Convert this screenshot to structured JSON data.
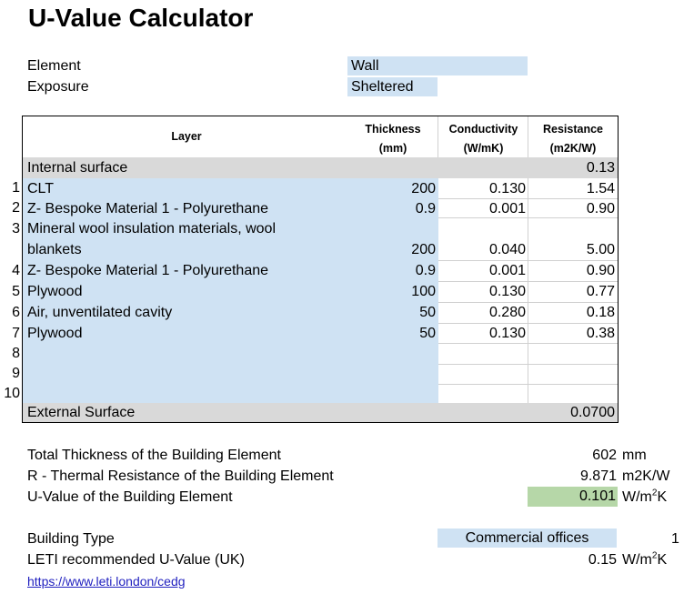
{
  "title": "U-Value Calculator",
  "element": {
    "label": "Element",
    "value": "Wall"
  },
  "exposure": {
    "label": "Exposure",
    "value": "Sheltered"
  },
  "table": {
    "headers": {
      "layer": "Layer",
      "thickness": "Thickness",
      "thickness_unit": "(mm)",
      "conductivity": "Conductivity",
      "conductivity_unit": "(W/mK)",
      "resistance": "Resistance",
      "resistance_unit": "(m2K/W)"
    },
    "internal_surface": {
      "label": "Internal surface",
      "resistance": "0.13"
    },
    "rows": [
      {
        "num": "1",
        "layer": "CLT",
        "thickness": "200",
        "conductivity": "0.130",
        "resistance": "1.54"
      },
      {
        "num": "2",
        "layer": "Z- Bespoke Material 1 - Polyurethane",
        "thickness": "0.9",
        "conductivity": "0.001",
        "resistance": "0.90"
      },
      {
        "num": "3",
        "layer": "Mineral wool insulation materials, wool",
        "layer_line2": "blankets",
        "thickness": "200",
        "conductivity": "0.040",
        "resistance": "5.00"
      },
      {
        "num": "4",
        "layer": "Z- Bespoke Material 1 - Polyurethane",
        "thickness": "0.9",
        "conductivity": "0.001",
        "resistance": "0.90"
      },
      {
        "num": "5",
        "layer": "Plywood",
        "thickness": "100",
        "conductivity": "0.130",
        "resistance": "0.77"
      },
      {
        "num": "6",
        "layer": "Air, unventilated cavity",
        "thickness": "50",
        "conductivity": "0.280",
        "resistance": "0.18"
      },
      {
        "num": "7",
        "layer": "Plywood",
        "thickness": "50",
        "conductivity": "0.130",
        "resistance": "0.38"
      },
      {
        "num": "8"
      },
      {
        "num": "9"
      },
      {
        "num": "10"
      }
    ],
    "external_surface": {
      "label": "External Surface",
      "resistance": "0.0700"
    }
  },
  "results": {
    "total_thickness": {
      "label": "Total Thickness of the Building Element",
      "value": "602",
      "unit": "mm"
    },
    "resistance": {
      "label": "R - Thermal Resistance of the Building Element",
      "value": "9.871",
      "unit": "m2K/W"
    },
    "uvalue": {
      "label": "U-Value of the Building Element",
      "value": "0.101",
      "unit_base": "W/m",
      "unit_sup": "2",
      "unit_end": "K"
    }
  },
  "building": {
    "type_label": "Building Type",
    "type_value": "Commercial offices",
    "type_index": "1",
    "leti_label": "LETI recommended U-Value (UK)",
    "leti_value": "0.15",
    "leti_unit_base": "W/m",
    "leti_unit_sup": "2",
    "leti_unit_end": "K",
    "link": "https://www.leti.london/cedg"
  },
  "colors": {
    "input_blue": "#cfe2f3",
    "gray": "#d9d9d9",
    "result_green": "#b6d7a8"
  }
}
